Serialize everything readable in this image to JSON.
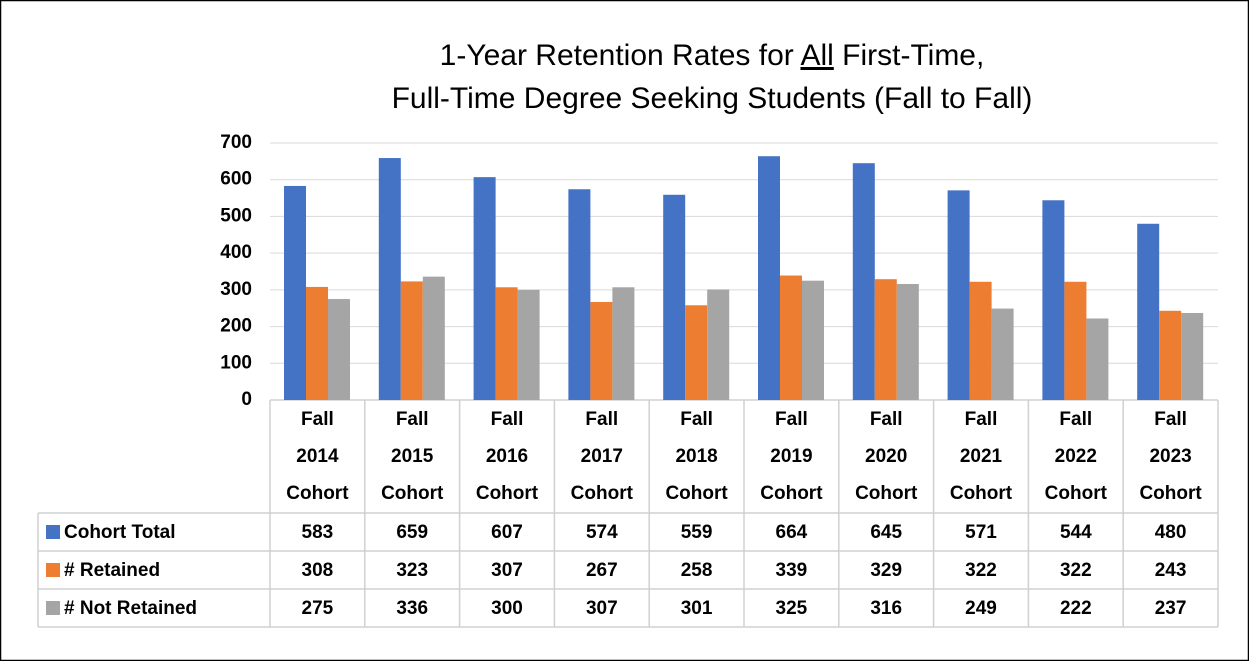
{
  "chart_data": {
    "type": "bar",
    "title": [
      [
        "1-Year Retention Rates for ",
        "All",
        " First-Time,"
      ],
      [
        "Full-Time Degree Seeking Students (Fall to Fall)"
      ]
    ],
    "categories": [
      "Fall 2014 Cohort",
      "Fall 2015 Cohort",
      "Fall 2016 Cohort",
      "Fall 2017 Cohort",
      "Fall 2018 Cohort",
      "Fall 2019 Cohort",
      "Fall 2020 Cohort",
      "Fall 2021 Cohort",
      "Fall 2022 Cohort",
      "Fall 2023 Cohort"
    ],
    "series": [
      {
        "name": "Cohort Total",
        "color": "#4472c4",
        "values": [
          583,
          659,
          607,
          574,
          559,
          664,
          645,
          571,
          544,
          480
        ]
      },
      {
        "name": "# Retained",
        "color": "#ed7d31",
        "values": [
          308,
          323,
          307,
          267,
          258,
          339,
          329,
          322,
          322,
          243
        ]
      },
      {
        "name": "# Not Retained",
        "color": "#a5a5a5",
        "values": [
          275,
          336,
          300,
          307,
          301,
          325,
          316,
          249,
          222,
          237
        ]
      }
    ],
    "ylim": [
      0,
      700
    ],
    "yticks": [
      0,
      100,
      200,
      300,
      400,
      500,
      600,
      700
    ],
    "grid": true
  }
}
